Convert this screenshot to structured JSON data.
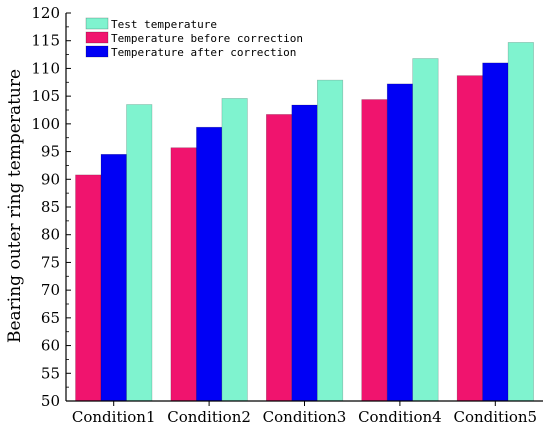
{
  "chart_data": {
    "type": "bar",
    "title": "",
    "xlabel": "",
    "ylabel": "Bearing outer ring temperature",
    "ylim": [
      50,
      120
    ],
    "yticks": [
      50,
      55,
      60,
      65,
      70,
      75,
      80,
      85,
      90,
      95,
      100,
      105,
      110,
      115,
      120
    ],
    "categories": [
      "Condition1",
      "Condition2",
      "Condition3",
      "Condition4",
      "Condition5"
    ],
    "legend_position": "top-left",
    "grid": false,
    "series": [
      {
        "name": "Temperature before correction",
        "color": "#f0146e",
        "values": [
          90.8,
          95.7,
          101.7,
          104.4,
          108.7
        ]
      },
      {
        "name": "Temperature after correction",
        "color": "#0000f5",
        "values": [
          94.5,
          99.4,
          103.4,
          107.2,
          111.0
        ]
      },
      {
        "name": "Test temperature",
        "color": "#7ff3cf",
        "values": [
          103.5,
          104.6,
          107.9,
          111.8,
          114.7
        ]
      }
    ],
    "legend": [
      {
        "label": "Test temperature",
        "color": "#7ff3cf"
      },
      {
        "label": "Temperature before correction",
        "color": "#f0146e"
      },
      {
        "label": "Temperature after correction",
        "color": "#0000f5"
      }
    ]
  }
}
